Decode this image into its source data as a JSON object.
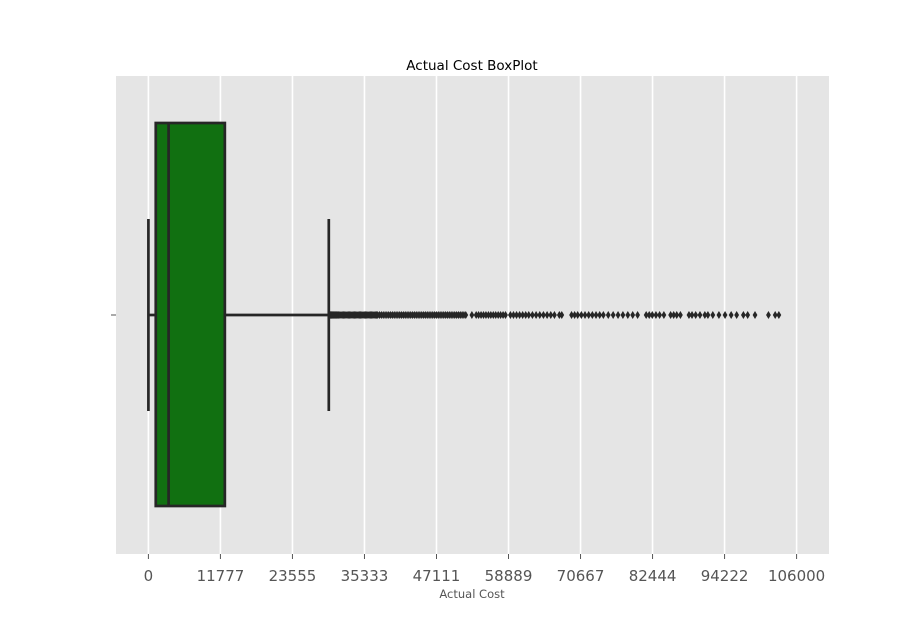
{
  "chart_data": {
    "type": "box",
    "orientation": "horizontal",
    "title": "Actual Cost BoxPlot",
    "xlabel": "Actual Cost",
    "ylabel": "",
    "xlim": [
      -5300,
      111300
    ],
    "xticks": [
      0,
      11777,
      23555,
      35333,
      47111,
      58889,
      70667,
      82444,
      94222,
      106000
    ],
    "xtick_labels": [
      "0",
      "11777",
      "23555",
      "35333",
      "47111",
      "58889",
      "70667",
      "82444",
      "94222",
      "106000"
    ],
    "grid": true,
    "box_color": "#117011",
    "line_color": "#262626",
    "background": "#e5e5e5",
    "box": {
      "whisker_low": 0,
      "q1": 1200,
      "median": 3300,
      "q3": 12500,
      "whisker_high": 29500
    },
    "outliers": [
      29700,
      29850,
      30000,
      30150,
      30300,
      30450,
      30600,
      30750,
      30900,
      31100,
      31300,
      31500,
      31700,
      31900,
      32100,
      32300,
      32500,
      32700,
      32900,
      33100,
      33300,
      33500,
      33700,
      33900,
      34100,
      34300,
      34500,
      34700,
      34900,
      35100,
      35300,
      35500,
      35700,
      35900,
      36100,
      36300,
      36500,
      36700,
      36900,
      37100,
      37300,
      37500,
      37800,
      38100,
      38400,
      38700,
      39000,
      39300,
      39600,
      39900,
      40200,
      40500,
      40800,
      41100,
      41400,
      41700,
      42000,
      42300,
      42600,
      42900,
      43200,
      43500,
      43800,
      44100,
      44400,
      44700,
      45000,
      45300,
      45600,
      45900,
      46200,
      46500,
      46800,
      47100,
      47400,
      47700,
      48000,
      48300,
      48600,
      48900,
      49200,
      49500,
      49800,
      50100,
      50400,
      50700,
      51000,
      51300,
      51600,
      51900,
      52900,
      53600,
      54000,
      54400,
      54800,
      55200,
      55600,
      56000,
      56400,
      56800,
      57200,
      57600,
      58000,
      58400,
      59200,
      59700,
      60200,
      60700,
      61200,
      61700,
      62200,
      62800,
      63400,
      64000,
      64600,
      65200,
      65800,
      66400,
      67200,
      67600,
      69200,
      69700,
      70200,
      70800,
      71400,
      72000,
      72600,
      73200,
      73800,
      74400,
      75200,
      76000,
      76800,
      77600,
      78400,
      79200,
      80000,
      81400,
      81900,
      82400,
      83000,
      83600,
      84300,
      85400,
      85900,
      86400,
      87000,
      88400,
      88900,
      89500,
      90200,
      91000,
      91500,
      92300,
      93300,
      94300,
      95300,
      96200,
      97300,
      98000,
      99200,
      101400,
      102500,
      103100
    ]
  }
}
